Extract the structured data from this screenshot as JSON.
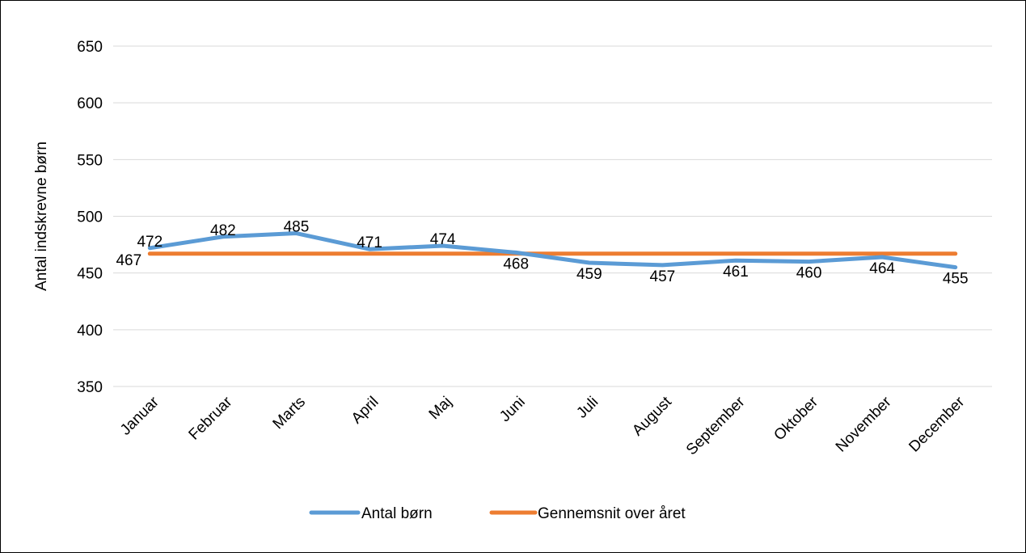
{
  "chart_data": {
    "type": "line",
    "title": "",
    "xlabel": "",
    "ylabel": "Antal indskrevne børn",
    "categories": [
      "Januar",
      "Februar",
      "Marts",
      "April",
      "Maj",
      "Juni",
      "Juli",
      "August",
      "September",
      "Oktober",
      "November",
      "December"
    ],
    "series": [
      {
        "name": "Antal børn",
        "color": "#5B9BD5",
        "values": [
          472,
          482,
          485,
          471,
          474,
          468,
          459,
          457,
          461,
          460,
          464,
          455
        ],
        "data_labels": [
          "472",
          "482",
          "485",
          "471",
          "474",
          "468",
          "459",
          "457",
          "461",
          "460",
          "464",
          "455"
        ]
      },
      {
        "name": "Gennemsnit over året",
        "color": "#ED7D31",
        "values": [
          467,
          467,
          467,
          467,
          467,
          467,
          467,
          467,
          467,
          467,
          467,
          467
        ],
        "data_labels": [
          "467"
        ]
      }
    ],
    "ylim": [
      350,
      650
    ],
    "yticks": [
      350,
      400,
      450,
      500,
      550,
      600,
      650
    ],
    "ytick_labels": [
      "350",
      "400",
      "450",
      "500",
      "550",
      "600",
      "650"
    ],
    "grid": true,
    "gridline_color": "#D9D9D9",
    "legend_position": "bottom"
  }
}
